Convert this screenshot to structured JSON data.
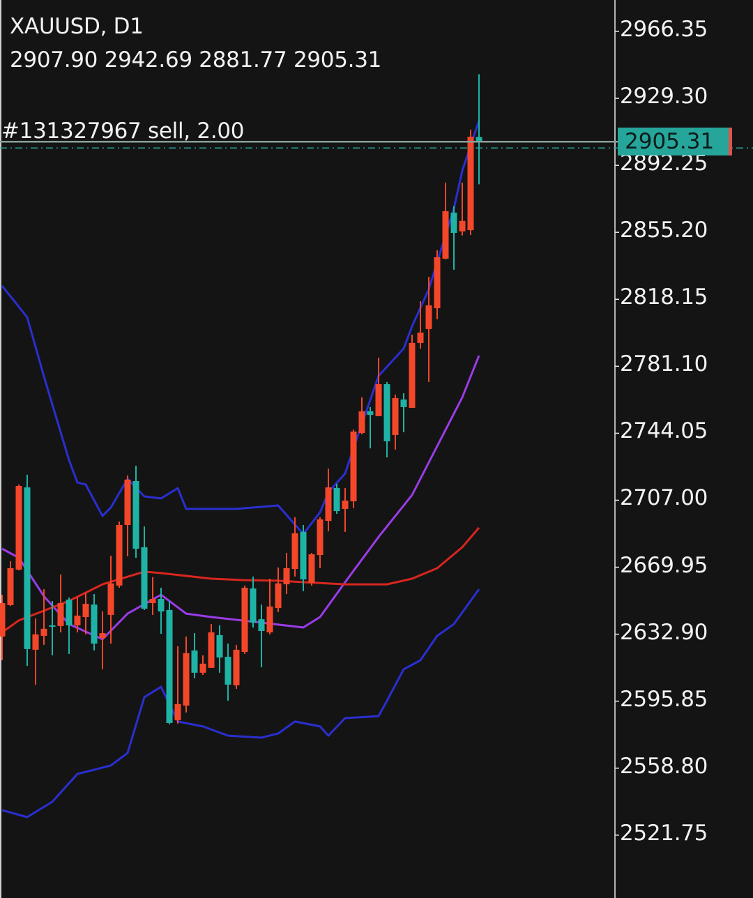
{
  "header": {
    "title": "XAUUSD, D1",
    "ohlc": "2907.90 2942.69 2881.77 2905.31"
  },
  "order": {
    "label": "#131327967 sell, 2.00",
    "price": 2905.31
  },
  "current_price": "2905.31",
  "colors": {
    "background": "#141414",
    "bull_candle": "#f4472a",
    "bear_candle": "#1fb3a6",
    "bollinger": "#2a2fd0",
    "ma_fast": "#9a3ce8",
    "ma_slow": "#d8261f",
    "order_line": "#8c9e99",
    "bid_line": "#2aa79c",
    "price_tag": "#26a69a"
  },
  "chart_data": {
    "type": "candlestick",
    "symbol": "XAUUSD",
    "timeframe": "D1",
    "ylim": [
      2496,
      2990
    ],
    "y_ticks": [
      "2966.35",
      "2929.30",
      "2892.25",
      "2855.20",
      "2818.15",
      "2781.10",
      "2744.05",
      "2707.00",
      "2669.95",
      "2632.90",
      "2595.85",
      "2558.80",
      "2521.75"
    ],
    "candles": [
      [
        2631.6,
        2654.7,
        2618.5,
        2650.1
      ],
      [
        2649.0,
        2673.3,
        2648.5,
        2669.4
      ],
      [
        2668.6,
        2715.7,
        2668.2,
        2714.9
      ],
      [
        2714.1,
        2721.1,
        2615.4,
        2624.7
      ],
      [
        2624.3,
        2641.6,
        2605.0,
        2632.8
      ],
      [
        2632.0,
        2657.8,
        2627.0,
        2635.9
      ],
      [
        2637.8,
        2651.3,
        2621.2,
        2637.0
      ],
      [
        2637.4,
        2665.9,
        2633.9,
        2650.1
      ],
      [
        2652.0,
        2653.2,
        2622.0,
        2637.8
      ],
      [
        2637.8,
        2653.2,
        2633.9,
        2643.2
      ],
      [
        2642.4,
        2655.9,
        2632.8,
        2649.7
      ],
      [
        2649.3,
        2655.1,
        2623.9,
        2627.7
      ],
      [
        2630.8,
        2645.5,
        2613.5,
        2633.5
      ],
      [
        2643.6,
        2676.3,
        2627.7,
        2661.0
      ],
      [
        2659.8,
        2695.2,
        2658.6,
        2693.3
      ],
      [
        2693.3,
        2720.7,
        2676.0,
        2718.4
      ],
      [
        2717.6,
        2726.1,
        2675.2,
        2680.2
      ],
      [
        2681.0,
        2692.5,
        2646.3,
        2647.0
      ],
      [
        2650.1,
        2664.4,
        2643.6,
        2652.4
      ],
      [
        2652.4,
        2658.6,
        2633.1,
        2645.5
      ],
      [
        2646.3,
        2651.3,
        2583.0,
        2583.8
      ],
      [
        2585.3,
        2626.2,
        2583.4,
        2594.2
      ],
      [
        2593.4,
        2631.6,
        2589.6,
        2622.4
      ],
      [
        2623.9,
        2633.5,
        2608.5,
        2611.6
      ],
      [
        2611.6,
        2621.2,
        2610.4,
        2616.6
      ],
      [
        2614.3,
        2638.5,
        2614.3,
        2633.9
      ],
      [
        2632.4,
        2637.8,
        2611.6,
        2620.0
      ],
      [
        2620.4,
        2627.7,
        2596.1,
        2605.0
      ],
      [
        2604.6,
        2627.0,
        2602.7,
        2624.3
      ],
      [
        2623.1,
        2659.8,
        2622.0,
        2658.6
      ],
      [
        2658.2,
        2664.8,
        2636.6,
        2639.3
      ],
      [
        2641.2,
        2649.3,
        2614.6,
        2634.7
      ],
      [
        2633.9,
        2663.6,
        2632.8,
        2648.2
      ],
      [
        2647.4,
        2669.8,
        2645.1,
        2661.0
      ],
      [
        2660.5,
        2677.9,
        2655.1,
        2669.4
      ],
      [
        2669.0,
        2697.6,
        2664.8,
        2688.7
      ],
      [
        2689.5,
        2693.3,
        2656.7,
        2663.2
      ],
      [
        2661.3,
        2677.9,
        2659.8,
        2677.1
      ],
      [
        2676.7,
        2697.6,
        2669.4,
        2696.4
      ],
      [
        2695.6,
        2724.5,
        2689.8,
        2714.1
      ],
      [
        2713.8,
        2716.1,
        2699.5,
        2701.0
      ],
      [
        2702.2,
        2713.8,
        2689.5,
        2706.8
      ],
      [
        2706.4,
        2746.1,
        2702.6,
        2745.0
      ],
      [
        2744.2,
        2763.9,
        2743.4,
        2756.2
      ],
      [
        2756.2,
        2758.5,
        2735.7,
        2754.2
      ],
      [
        2753.5,
        2785.9,
        2753.5,
        2771.2
      ],
      [
        2771.2,
        2772.4,
        2730.7,
        2739.6
      ],
      [
        2743.1,
        2765.4,
        2735.0,
        2763.5
      ],
      [
        2762.7,
        2766.2,
        2744.6,
        2758.5
      ],
      [
        2758.1,
        2798.6,
        2758.1,
        2794.0
      ],
      [
        2794.0,
        2817.1,
        2790.9,
        2799.7
      ],
      [
        2801.7,
        2830.6,
        2772.4,
        2814.8
      ],
      [
        2813.2,
        2845.3,
        2807.1,
        2841.4
      ],
      [
        2840.6,
        2882.7,
        2840.2,
        2866.9
      ],
      [
        2866.1,
        2869.6,
        2834.5,
        2854.9
      ],
      [
        2855.7,
        2882.7,
        2853.4,
        2861.5
      ],
      [
        2856.4,
        2912.0,
        2853.7,
        2908.1
      ],
      [
        2907.9,
        2942.69,
        2881.77,
        2905.31
      ]
    ],
    "candle_fields": [
      "open",
      "high",
      "low",
      "close"
    ],
    "indicators": [
      {
        "key": "bb_upper",
        "color": "#2a2fd0",
        "points": [
          [
            0,
            2825.6
          ],
          [
            1,
            2819.8
          ],
          [
            3,
            2808.2
          ],
          [
            5,
            2775.5
          ],
          [
            6,
            2760.0
          ],
          [
            8,
            2729.2
          ],
          [
            9,
            2716.8
          ],
          [
            10,
            2715.7
          ],
          [
            12,
            2698.3
          ],
          [
            13,
            2703.0
          ],
          [
            15,
            2718.8
          ],
          [
            17,
            2709.1
          ],
          [
            19,
            2708.0
          ],
          [
            21,
            2713.7
          ],
          [
            22,
            2702.2
          ],
          [
            28,
            2702.2
          ],
          [
            33,
            2704.1
          ],
          [
            36,
            2688.3
          ],
          [
            38,
            2700.3
          ],
          [
            39,
            2711.4
          ],
          [
            41,
            2721.8
          ],
          [
            42,
            2735.7
          ],
          [
            45,
            2775.8
          ],
          [
            48,
            2790.9
          ],
          [
            49,
            2803.2
          ],
          [
            51,
            2823.7
          ],
          [
            52,
            2838.7
          ],
          [
            54,
            2868.4
          ],
          [
            55,
            2889.2
          ],
          [
            57,
            2917.0
          ]
        ]
      },
      {
        "key": "bb_lower",
        "color": "#2a2fd0",
        "points": [
          [
            0,
            2535.6
          ],
          [
            3,
            2531.7
          ],
          [
            6,
            2540.2
          ],
          [
            9,
            2555.6
          ],
          [
            13,
            2560.3
          ],
          [
            15,
            2567.2
          ],
          [
            17,
            2598.1
          ],
          [
            19,
            2603.8
          ],
          [
            21,
            2584.6
          ],
          [
            24,
            2581.9
          ],
          [
            27,
            2576.8
          ],
          [
            31,
            2575.7
          ],
          [
            33,
            2578.0
          ],
          [
            35,
            2584.6
          ],
          [
            38,
            2581.9
          ],
          [
            39,
            2576.8
          ],
          [
            41,
            2586.5
          ],
          [
            45,
            2587.6
          ],
          [
            46,
            2596.1
          ],
          [
            48,
            2613.5
          ],
          [
            50,
            2618.5
          ],
          [
            52,
            2632.0
          ],
          [
            54,
            2638.5
          ],
          [
            57,
            2657.8
          ]
        ]
      },
      {
        "key": "ma_fast",
        "color": "#9a3ce8",
        "points": [
          [
            0,
            2680.2
          ],
          [
            2,
            2675.2
          ],
          [
            5,
            2653.9
          ],
          [
            8,
            2638.5
          ],
          [
            12,
            2630.1
          ],
          [
            15,
            2644.3
          ],
          [
            19,
            2654.7
          ],
          [
            22,
            2644.3
          ],
          [
            25,
            2642.4
          ],
          [
            31,
            2639.3
          ],
          [
            36,
            2636.6
          ],
          [
            38,
            2642.4
          ],
          [
            41,
            2661.7
          ],
          [
            45,
            2686.7
          ],
          [
            49,
            2709.9
          ],
          [
            52,
            2736.9
          ],
          [
            55,
            2763.9
          ],
          [
            57,
            2787.0
          ]
        ]
      },
      {
        "key": "ma_slow",
        "color": "#d8261f",
        "points": [
          [
            0,
            2633.9
          ],
          [
            2,
            2640.5
          ],
          [
            8,
            2651.3
          ],
          [
            12,
            2660.5
          ],
          [
            17,
            2667.5
          ],
          [
            19,
            2666.7
          ],
          [
            25,
            2663.6
          ],
          [
            29,
            2662.8
          ],
          [
            33,
            2662.5
          ],
          [
            36,
            2661.7
          ],
          [
            41,
            2660.5
          ],
          [
            46,
            2660.5
          ],
          [
            49,
            2663.6
          ],
          [
            52,
            2669.4
          ],
          [
            55,
            2681.0
          ],
          [
            57,
            2691.8
          ]
        ]
      }
    ]
  }
}
